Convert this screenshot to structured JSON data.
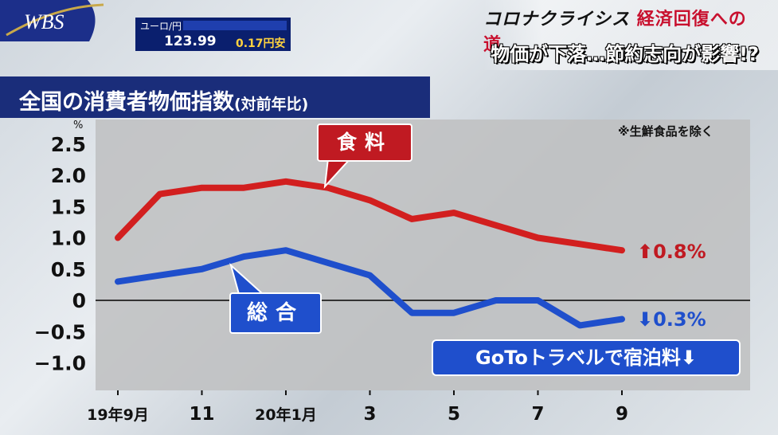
{
  "broadcast": {
    "logo": "WBS"
  },
  "ticker": {
    "label": "ユーロ/円",
    "rate": "123.99",
    "change": "0.17",
    "change_unit": "円安"
  },
  "header": {
    "series_a": "コロナクライシス",
    "series_b": "経済回復への道",
    "subtitle": "物価が下落…節約志向が影響!?"
  },
  "chart_data": {
    "type": "line",
    "title": "全国の消費者物価指数",
    "title_note": "(対前年比)",
    "unit": "%",
    "note": "※生鮮食品を除く",
    "x": [
      "19年9月",
      "10",
      "11",
      "12",
      "20年1月",
      "2",
      "3",
      "4",
      "5",
      "6",
      "7",
      "8",
      "9"
    ],
    "xticks": [
      "19年9月",
      "11",
      "20年1月",
      "3",
      "5",
      "7",
      "9"
    ],
    "yticks": [
      "2.5",
      "2.0",
      "1.5",
      "1.0",
      "0.5",
      "0",
      "−0.5",
      "−1.0"
    ],
    "ylim": [
      -1.0,
      2.5
    ],
    "series": [
      {
        "name": "食料",
        "color": "#d21f1f",
        "values": [
          1.0,
          1.7,
          1.8,
          1.8,
          1.9,
          1.8,
          1.6,
          1.3,
          1.4,
          1.2,
          1.0,
          0.9,
          0.8
        ],
        "end_label": "0.8%",
        "end_dir": "up"
      },
      {
        "name": "総合",
        "color": "#1f4fcc",
        "values": [
          0.3,
          0.4,
          0.5,
          0.7,
          0.8,
          0.6,
          0.4,
          -0.2,
          -0.2,
          0.0,
          0.0,
          -0.4,
          -0.3
        ],
        "end_label": "0.3%",
        "end_dir": "down"
      }
    ],
    "annotation": "GoToトラベルで宿泊料"
  }
}
